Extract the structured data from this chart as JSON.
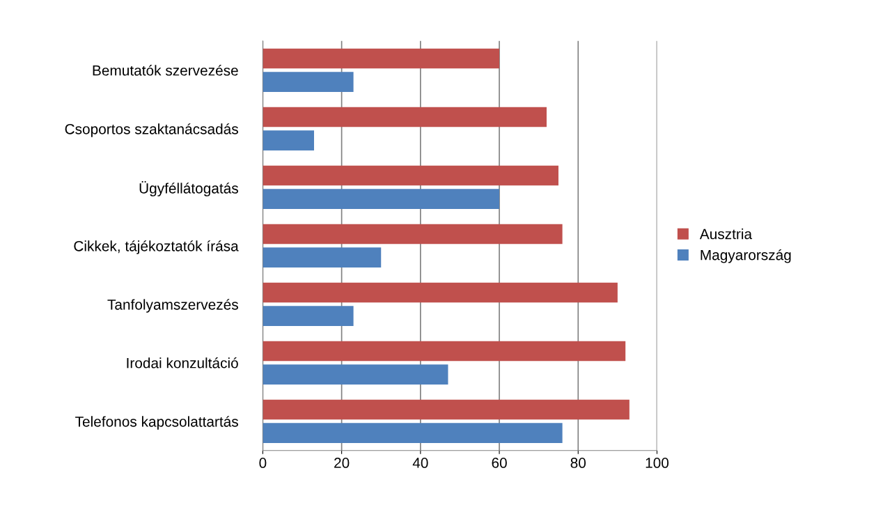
{
  "chart_data": {
    "type": "bar",
    "orientation": "horizontal",
    "categories": [
      "Bemutatók szervezése",
      "Csoportos szaktanácsadás",
      "Ügyféllátogatás",
      "Cikkek, tájékoztatók írása",
      "Tanfolyamszervezés",
      "Irodai konzultáció",
      "Telefonos kapcsolattartás"
    ],
    "series": [
      {
        "name": "Ausztria",
        "color": "#c0504d",
        "values": [
          60,
          72,
          75,
          76,
          90,
          92,
          93
        ]
      },
      {
        "name": "Magyarország",
        "color": "#4f81bd",
        "values": [
          23,
          13,
          60,
          30,
          23,
          47,
          76
        ]
      }
    ],
    "xlim": [
      0,
      100
    ],
    "xticks": [
      0,
      20,
      40,
      60,
      80,
      100
    ],
    "grid": "x",
    "legend": "right"
  }
}
